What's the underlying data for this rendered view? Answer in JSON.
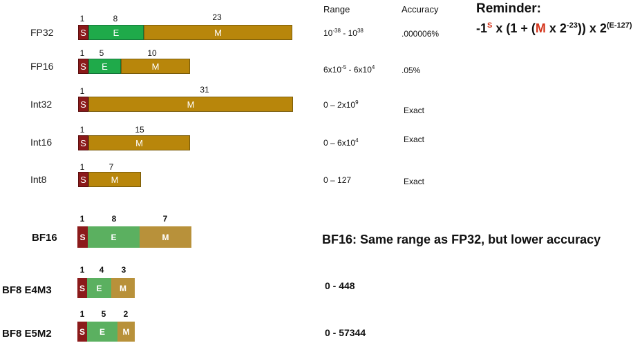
{
  "headers": {
    "range": "Range",
    "accuracy": "Accuracy"
  },
  "colors": {
    "sign": "#8b1a1a",
    "exponent": "#1faa4a",
    "mantissa": "#b8860b",
    "sign_light": "#8b1a1a",
    "exponent_light": "#5bb060",
    "mantissa_light": "#b8913a"
  },
  "formats": [
    {
      "name": "FP32",
      "sign_bits": "1",
      "exp_bits": "8",
      "man_bits": "23",
      "s": "S",
      "e": "E",
      "m": "M",
      "range": {
        "base": "10",
        "exp": "-38",
        "sep": " - ",
        "base2": "10",
        "exp2": "38"
      },
      "accuracy": ".000006%"
    },
    {
      "name": "FP16",
      "sign_bits": "1",
      "exp_bits": "5",
      "man_bits": "10",
      "s": "S",
      "e": "E",
      "m": "M",
      "range": {
        "pre": "6x",
        "base": "10",
        "exp": "-5",
        "sep": " - 6x",
        "base2": "10",
        "exp2": "4"
      },
      "accuracy": ".05%"
    },
    {
      "name": "Int32",
      "sign_bits": "1",
      "man_bits": "31",
      "s": "S",
      "m": "M",
      "range": {
        "pre": "0 – 2x",
        "base": "10",
        "exp": "9"
      },
      "accuracy": "Exact"
    },
    {
      "name": "Int16",
      "sign_bits": "1",
      "man_bits": "15",
      "s": "S",
      "m": "M",
      "range": {
        "pre": "0 – 6x",
        "base": "10",
        "exp": "4"
      },
      "accuracy": "Exact"
    },
    {
      "name": "Int8",
      "sign_bits": "1",
      "man_bits": "7",
      "s": "S",
      "m": "M",
      "range": {
        "pre": "0 – 127"
      },
      "accuracy": "Exact"
    },
    {
      "name": "BF16",
      "sign_bits": "1",
      "exp_bits": "8",
      "man_bits": "7",
      "s": "S",
      "e": "E",
      "m": "M",
      "note": "BF16: Same range as FP32, but lower accuracy"
    },
    {
      "name": "BF8 E4M3",
      "sign_bits": "1",
      "exp_bits": "4",
      "man_bits": "3",
      "s": "S",
      "e": "E",
      "m": "M",
      "range_text": "0 - 448"
    },
    {
      "name": "BF8 E5M2",
      "sign_bits": "1",
      "exp_bits": "5",
      "man_bits": "2",
      "s": "S",
      "e": "E",
      "m": "M",
      "range_text": "0 - 57344"
    }
  ],
  "reminder": {
    "title": "Reminder:",
    "f_start": "-1",
    "f_s": "S",
    "f_mid1": " x (1 + (",
    "f_m": "M",
    "f_mid2": " x 2",
    "f_exp1": "-23",
    "f_mid3": ")) x 2",
    "f_exp2": "(E-127)"
  }
}
